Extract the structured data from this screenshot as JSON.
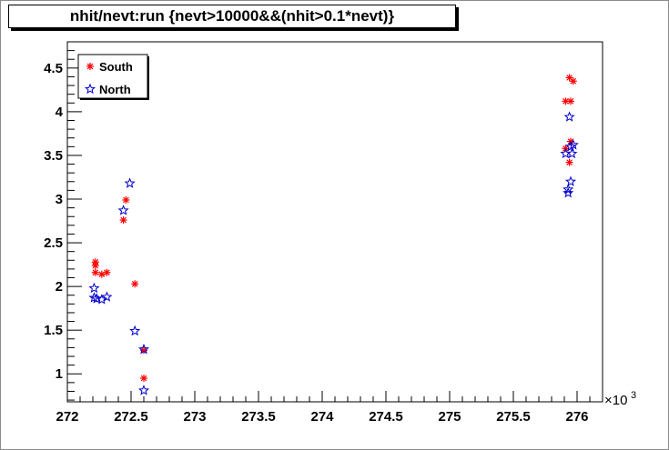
{
  "chart_data": {
    "type": "scatter",
    "title": "nhit/nevt:run {nevt>10000&&(nhit>0.1*nevt)}",
    "xlabel": "",
    "ylabel": "",
    "x_exponent_label": "×10",
    "x_exponent_power": "3",
    "xlim": [
      272.0,
      276.2
    ],
    "ylim": [
      0.68,
      4.8
    ],
    "x_ticks": [
      272,
      272.5,
      273,
      273.5,
      274,
      274.5,
      275,
      275.5,
      276
    ],
    "x_tick_labels": [
      "272",
      "272.5",
      "273",
      "273.5",
      "274",
      "274.5",
      "275",
      "275.5",
      "276"
    ],
    "y_ticks": [
      1,
      1.5,
      2,
      2.5,
      3,
      3.5,
      4,
      4.5
    ],
    "y_tick_labels": [
      "1",
      "1.5",
      "2",
      "2.5",
      "3",
      "3.5",
      "4",
      "4.5"
    ],
    "grid": false,
    "legend_position": "top-left",
    "series": [
      {
        "name": "South",
        "color": "#ff0000",
        "marker": "asterisk",
        "points": [
          [
            272.22,
            2.28
          ],
          [
            272.22,
            2.24
          ],
          [
            272.22,
            2.16
          ],
          [
            272.27,
            2.14
          ],
          [
            272.31,
            2.16
          ],
          [
            272.44,
            2.76
          ],
          [
            272.46,
            2.99
          ],
          [
            272.53,
            2.03
          ],
          [
            272.6,
            1.27
          ],
          [
            272.6,
            0.95
          ],
          [
            275.91,
            4.12
          ],
          [
            275.91,
            3.58
          ],
          [
            275.94,
            4.39
          ],
          [
            275.95,
            4.12
          ],
          [
            275.97,
            4.35
          ],
          [
            275.95,
            3.66
          ],
          [
            275.94,
            3.42
          ]
        ]
      },
      {
        "name": "North",
        "color": "#0000cc",
        "marker": "star",
        "points": [
          [
            272.21,
            1.98
          ],
          [
            272.21,
            1.87
          ],
          [
            272.23,
            1.86
          ],
          [
            272.27,
            1.85
          ],
          [
            272.31,
            1.88
          ],
          [
            272.44,
            2.87
          ],
          [
            272.49,
            3.18
          ],
          [
            272.53,
            1.49
          ],
          [
            272.6,
            1.28
          ],
          [
            272.6,
            0.81
          ],
          [
            275.91,
            3.52
          ],
          [
            275.93,
            3.11
          ],
          [
            275.93,
            3.07
          ],
          [
            275.94,
            3.94
          ],
          [
            275.95,
            3.2
          ],
          [
            275.95,
            3.6
          ],
          [
            275.96,
            3.52
          ],
          [
            275.97,
            3.62
          ]
        ]
      }
    ]
  }
}
